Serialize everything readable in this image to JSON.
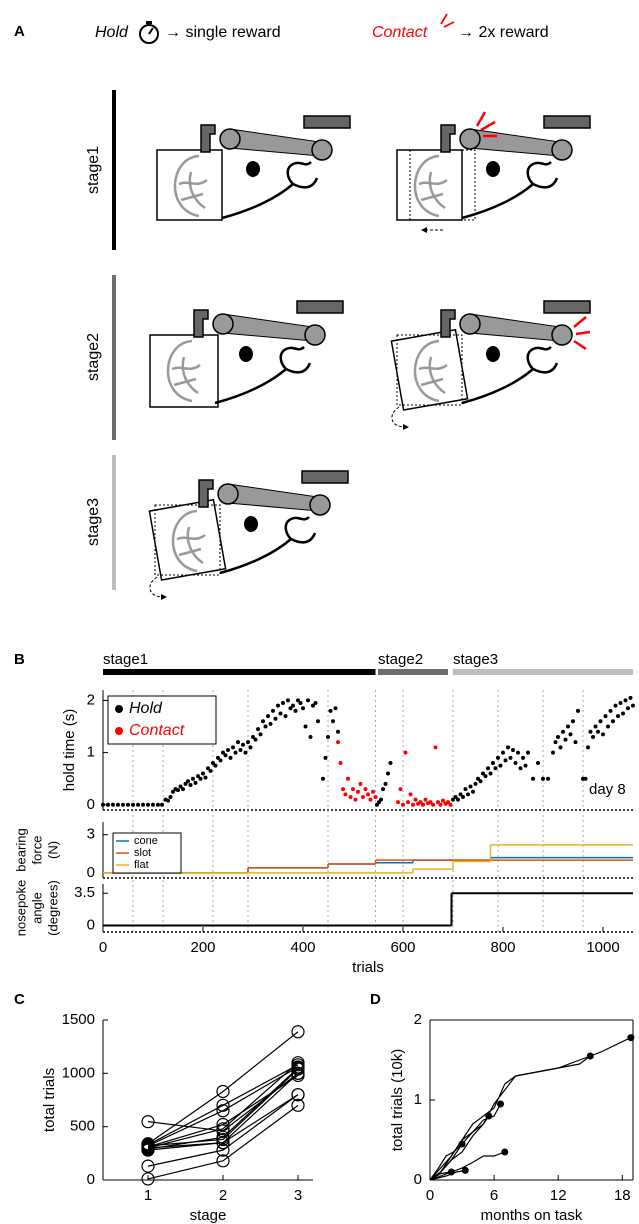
{
  "panel_a": {
    "label": "A",
    "hold": "Hold",
    "hold_result": "→ single reward",
    "contact": "Contact",
    "contact_result": "→ 2x reward",
    "stages": [
      "stage1",
      "stage2",
      "stage3"
    ]
  },
  "chart_data": [
    {
      "type": "scatter",
      "panel_label": "B",
      "stages": [
        {
          "name": "stage1",
          "start": 0,
          "end": 545,
          "color": "#000000"
        },
        {
          "name": "stage2",
          "start": 550,
          "end": 690,
          "color": "#6d6d6d"
        },
        {
          "name": "stage3",
          "start": 700,
          "end": 1060,
          "color": "#bdbdbd"
        }
      ],
      "y_label": "hold time (s)",
      "xlim": [
        0,
        1060
      ],
      "ylim": [
        -0.1,
        2.2
      ],
      "yticks": [
        0,
        1,
        2
      ],
      "day_lines": [
        60,
        120,
        220,
        290,
        450,
        545,
        600,
        700,
        790,
        880,
        960
      ],
      "annotation": "day 8",
      "series": [
        {
          "name": "Hold",
          "color": "#000000",
          "x": [
            0,
            10,
            20,
            30,
            40,
            50,
            60,
            70,
            80,
            90,
            100,
            110,
            118,
            125,
            130,
            135,
            140,
            145,
            150,
            155,
            160,
            165,
            170,
            175,
            180,
            185,
            190,
            195,
            200,
            205,
            210,
            215,
            220,
            225,
            230,
            235,
            240,
            245,
            250,
            255,
            260,
            265,
            270,
            275,
            280,
            285,
            290,
            295,
            300,
            305,
            310,
            315,
            320,
            325,
            330,
            335,
            340,
            345,
            350,
            355,
            360,
            365,
            370,
            375,
            380,
            385,
            390,
            395,
            400,
            405,
            410,
            415,
            420,
            425,
            430,
            440,
            445,
            450,
            455,
            460,
            465,
            470,
            548,
            552,
            556,
            560,
            565,
            570,
            575,
            700,
            705,
            710,
            715,
            720,
            725,
            730,
            735,
            740,
            745,
            750,
            755,
            760,
            765,
            770,
            775,
            780,
            785,
            790,
            795,
            800,
            805,
            810,
            815,
            820,
            825,
            830,
            835,
            840,
            845,
            850,
            860,
            870,
            880,
            890,
            900,
            905,
            910,
            915,
            920,
            925,
            930,
            935,
            940,
            945,
            950,
            960,
            965,
            970,
            975,
            980,
            985,
            990,
            995,
            1000,
            1005,
            1010,
            1015,
            1020,
            1025,
            1030,
            1035,
            1040,
            1045,
            1050,
            1055,
            1060
          ],
          "values": [
            0,
            0,
            0,
            0,
            0,
            0,
            0,
            0,
            0,
            0,
            0,
            0,
            0,
            0.1,
            0.08,
            0.15,
            0.25,
            0.3,
            0.28,
            0.35,
            0.3,
            0.4,
            0.45,
            0.38,
            0.5,
            0.42,
            0.55,
            0.5,
            0.6,
            0.52,
            0.7,
            0.65,
            0.8,
            0.75,
            0.9,
            0.85,
            1.0,
            0.95,
            1.05,
            0.9,
            1.1,
            1.0,
            1.2,
            1.05,
            1.15,
            1.0,
            1.2,
            1.1,
            1.3,
            1.25,
            1.45,
            1.35,
            1.6,
            1.5,
            1.7,
            1.55,
            1.8,
            1.65,
            1.9,
            1.75,
            1.95,
            1.7,
            2.0,
            1.85,
            1.9,
            1.8,
            2.0,
            1.95,
            1.85,
            1.5,
            2.0,
            1.3,
            1.9,
            1.95,
            1.6,
            0.5,
            0.9,
            1.3,
            1.8,
            1.6,
            1.85,
            1.4,
            0.0,
            0.05,
            0.1,
            0.3,
            0.4,
            0.6,
            0.8,
            0.1,
            0.15,
            0.1,
            0.2,
            0.15,
            0.3,
            0.2,
            0.35,
            0.25,
            0.4,
            0.5,
            0.45,
            0.6,
            0.55,
            0.7,
            0.6,
            0.8,
            0.7,
            0.9,
            0.75,
            1.0,
            0.85,
            1.1,
            0.9,
            1.05,
            0.8,
            1.0,
            0.7,
            0.9,
            0.75,
            1.0,
            0.5,
            0.8,
            0.5,
            0.5,
            1.0,
            1.2,
            1.3,
            1.1,
            1.4,
            1.25,
            1.5,
            1.35,
            1.6,
            1.2,
            1.8,
            0.5,
            0.5,
            1.1,
            1.4,
            1.3,
            1.5,
            1.4,
            1.6,
            1.35,
            1.7,
            1.5,
            1.8,
            1.6,
            1.9,
            1.7,
            1.95,
            1.75,
            2.0,
            1.85,
            2.05,
            1.9
          ]
        },
        {
          "name": "Contact",
          "color": "#ff0000",
          "x": [
            470,
            475,
            480,
            485,
            490,
            495,
            500,
            505,
            510,
            515,
            520,
            525,
            530,
            535,
            540,
            545,
            590,
            595,
            600,
            605,
            610,
            615,
            620,
            625,
            630,
            635,
            640,
            645,
            650,
            655,
            660,
            665,
            670,
            675,
            680,
            685,
            690,
            695
          ],
          "values": [
            1.2,
            0.8,
            0.3,
            0.2,
            0.5,
            0.15,
            0.3,
            0.1,
            0.25,
            0.4,
            0.15,
            0.3,
            0.2,
            0.1,
            0.25,
            0.15,
            0.05,
            0.3,
            0.0,
            1.0,
            0.05,
            0.2,
            0.0,
            0.1,
            0.02,
            0.05,
            0.0,
            0.1,
            0.03,
            0.05,
            0.0,
            1.1,
            0.05,
            0.0,
            0.08,
            0.02,
            0.05,
            0.0
          ]
        }
      ]
    },
    {
      "type": "step",
      "y_label": [
        "bearing",
        "force",
        "(N)"
      ],
      "xlim": [
        0,
        1060
      ],
      "ylim": [
        -0.4,
        4
      ],
      "yticks": [
        0,
        3
      ],
      "series": [
        {
          "name": "cone",
          "color": "#0072bd",
          "x": [
            0,
            290,
            450,
            545,
            620,
            700,
            775
          ],
          "values": [
            0,
            0.4,
            0.7,
            0.8,
            1.0,
            1.0,
            1.2
          ]
        },
        {
          "name": "slot",
          "color": "#d95319",
          "x": [
            0,
            290,
            450,
            545,
            620,
            700,
            775
          ],
          "values": [
            0,
            0.4,
            0.7,
            1.0,
            1.0,
            1.0,
            1.0
          ]
        },
        {
          "name": "flat",
          "color": "#edb120",
          "x": [
            0,
            290,
            450,
            545,
            620,
            700,
            775
          ],
          "values": [
            0,
            0,
            0,
            0,
            0.3,
            0.9,
            2.2
          ]
        }
      ]
    },
    {
      "type": "step",
      "y_label": [
        "nosepoke",
        "angle",
        "(degrees)"
      ],
      "x_label": "trials",
      "xlim": [
        0,
        1060
      ],
      "xticks": [
        0,
        200,
        400,
        600,
        800,
        1000
      ],
      "ylim": [
        -0.7,
        4.5
      ],
      "yticks": [
        0,
        3.5
      ],
      "series": [
        {
          "color": "#000000",
          "x": [
            0,
            697
          ],
          "values": [
            0,
            3.5
          ]
        }
      ]
    },
    {
      "type": "line",
      "panel_label": "C",
      "x_label": "stage",
      "y_label": "total trials",
      "color": "#000000",
      "categories": [
        1,
        2,
        3
      ],
      "xlim": [
        0.4,
        3.2
      ],
      "ylim": [
        0,
        1500
      ],
      "yticks": [
        0,
        500,
        1000,
        1500
      ],
      "series": [
        {
          "values": [
            10,
            180,
            700
          ]
        },
        {
          "values": [
            130,
            280,
            800
          ]
        },
        {
          "values": [
            280,
            350,
            1000
          ]
        },
        {
          "values": [
            290,
            400,
            1050
          ]
        },
        {
          "values": [
            300,
            480,
            1100
          ]
        },
        {
          "values": [
            310,
            520,
            980
          ]
        },
        {
          "values": [
            320,
            650,
            1060
          ]
        },
        {
          "values": [
            330,
            700,
            1080
          ]
        },
        {
          "values": [
            340,
            830,
            1390
          ]
        },
        {
          "values": [
            547,
            460,
            1000
          ]
        },
        {
          "values": [
            300,
            350,
            800
          ]
        },
        {
          "values": [
            320,
            380,
            1040
          ]
        }
      ]
    },
    {
      "type": "line",
      "panel_label": "D",
      "x_label": "months on task",
      "y_label": "total trials (10k)",
      "color": "#000000",
      "xlim": [
        0,
        19
      ],
      "ylim": [
        0,
        2
      ],
      "xticks": [
        0,
        6,
        12,
        18
      ],
      "yticks": [
        0,
        1,
        2
      ],
      "series": [
        {
          "x": [
            0,
            1,
            2
          ],
          "values": [
            0,
            0.05,
            0.1
          ]
        },
        {
          "x": [
            0,
            1.5,
            2.5,
            3.3
          ],
          "values": [
            0,
            0.05,
            0.1,
            0.12
          ]
        },
        {
          "x": [
            0,
            1,
            2,
            3,
            4,
            5,
            6,
            7
          ],
          "values": [
            0,
            0.08,
            0.1,
            0.15,
            0.22,
            0.3,
            0.3,
            0.35
          ]
        },
        {
          "x": [
            0,
            0.8,
            1.5,
            2.2,
            3
          ],
          "values": [
            0,
            0.15,
            0.3,
            0.35,
            0.45
          ]
        },
        {
          "x": [
            0,
            1,
            2,
            3,
            4,
            5,
            5.5
          ],
          "values": [
            0,
            0.1,
            0.25,
            0.35,
            0.55,
            0.7,
            0.8
          ]
        },
        {
          "x": [
            0,
            1,
            2,
            3,
            4,
            5,
            6,
            6.6
          ],
          "values": [
            0,
            0.15,
            0.3,
            0.5,
            0.6,
            0.75,
            0.8,
            0.95
          ]
        },
        {
          "x": [
            0,
            1,
            2,
            3,
            4,
            5,
            6,
            7,
            8,
            10,
            12,
            14,
            15
          ],
          "values": [
            0,
            0.1,
            0.3,
            0.5,
            0.7,
            0.8,
            0.9,
            1.2,
            1.3,
            1.35,
            1.4,
            1.45,
            1.55
          ]
        },
        {
          "x": [
            0,
            1,
            2,
            3,
            4,
            5,
            6,
            8,
            10,
            12,
            14,
            16,
            18.8
          ],
          "values": [
            0,
            0.1,
            0.25,
            0.45,
            0.6,
            0.7,
            0.95,
            1.3,
            1.35,
            1.4,
            1.5,
            1.6,
            1.78
          ]
        }
      ]
    }
  ]
}
